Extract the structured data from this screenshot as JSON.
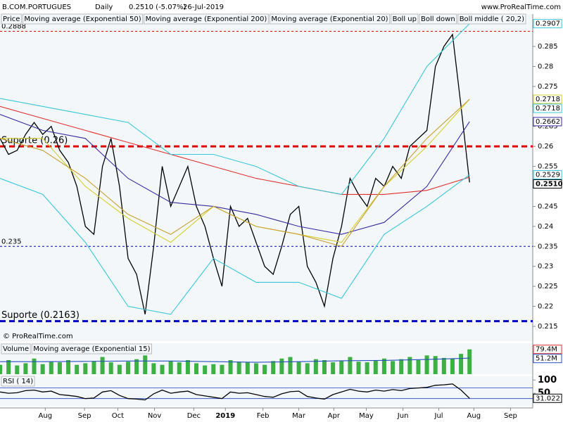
{
  "header": {
    "symbol": "B.COM.PORTUGUES",
    "period": "Daily",
    "price": "0.2510 (-5.07%)",
    "date": "26-Jul-2019",
    "site": "www.ProRealTime.com",
    "copyright": "© ProRealTime.com"
  },
  "chart_data": [
    {
      "type": "line",
      "xlim": [
        0,
        62.4
      ],
      "xticks": [
        {
          "value": 5.3,
          "label": "Aug"
        },
        {
          "value": 9.9,
          "label": "Sep"
        },
        {
          "value": 13.8,
          "label": "Oct"
        },
        {
          "value": 18.1,
          "label": "Nov"
        },
        {
          "value": 22.7,
          "label": "Dec"
        },
        {
          "value": 26.4,
          "label": "2019"
        },
        {
          "value": 30.8,
          "label": "Feb"
        },
        {
          "value": 35,
          "label": "Mar"
        },
        {
          "value": 39.1,
          "label": "Apr"
        },
        {
          "value": 42.9,
          "label": "May"
        },
        {
          "value": 47.2,
          "label": "Jun"
        },
        {
          "value": 51.4,
          "label": "Jul"
        },
        {
          "value": 55.5,
          "label": "Aug"
        },
        {
          "value": 59.8,
          "label": "Sep"
        }
      ],
      "ylim": [
        0.2113,
        0.2931
      ],
      "yticks": [
        0.215,
        0.22,
        0.225,
        0.23,
        0.235,
        0.24,
        0.245,
        0.25,
        0.255,
        0.26,
        0.265,
        0.27,
        0.275,
        0.28,
        0.285
      ],
      "series": [
        {
          "name": "Price",
          "color": "#000000",
          "values": [
            0.262,
            0.258,
            0.259,
            0.263,
            0.266,
            0.263,
            0.265,
            0.259,
            0.256,
            0.25,
            0.24,
            0.238,
            0.255,
            0.262,
            0.25,
            0.232,
            0.228,
            0.218,
            0.235,
            0.255,
            0.245,
            0.25,
            0.255,
            0.245,
            0.24,
            0.232,
            0.225,
            0.245,
            0.24,
            0.242,
            0.236,
            0.23,
            0.228,
            0.235,
            0.243,
            0.245,
            0.23,
            0.226,
            0.22,
            0.232,
            0.24,
            0.252,
            0.248,
            0.245,
            0.252,
            0.25,
            0.255,
            0.252,
            0.26,
            0.262,
            0.264,
            0.28,
            0.285,
            0.288,
            0.27,
            0.251
          ]
        },
        {
          "name": "Moving average (Exponential 50)",
          "color": "#3a2aa0",
          "x": [
            0,
            5,
            10,
            15,
            20,
            25,
            30,
            35,
            40,
            45,
            50,
            55
          ],
          "values": [
            0.268,
            0.264,
            0.262,
            0.252,
            0.246,
            0.245,
            0.243,
            0.24,
            0.238,
            0.241,
            0.25,
            0.2662
          ]
        },
        {
          "name": "Moving average (Exponential 200)",
          "color": "#e03030",
          "x": [
            0,
            5,
            10,
            15,
            20,
            25,
            30,
            35,
            40,
            45,
            50,
            55
          ],
          "values": [
            0.27,
            0.267,
            0.264,
            0.261,
            0.258,
            0.255,
            0.252,
            0.25,
            0.248,
            0.248,
            0.249,
            0.2523
          ]
        },
        {
          "name": "Moving average (Exponential 20)",
          "color": "#d4d030",
          "x": [
            0,
            5,
            10,
            15,
            20,
            25,
            30,
            35,
            40,
            45,
            50,
            55
          ],
          "values": [
            0.262,
            0.262,
            0.25,
            0.242,
            0.236,
            0.245,
            0.24,
            0.238,
            0.236,
            0.25,
            0.26,
            0.2718
          ]
        },
        {
          "name": "Boll up",
          "color": "#38c8d8",
          "x": [
            0,
            5,
            10,
            15,
            20,
            25,
            30,
            35,
            40,
            45,
            50,
            55
          ],
          "values": [
            0.272,
            0.27,
            0.268,
            0.266,
            0.258,
            0.258,
            0.255,
            0.25,
            0.248,
            0.262,
            0.28,
            0.2907
          ]
        },
        {
          "name": "Boll down",
          "color": "#38c8d8",
          "x": [
            0,
            5,
            10,
            15,
            20,
            25,
            30,
            35,
            40,
            45,
            50,
            55
          ],
          "values": [
            0.252,
            0.248,
            0.236,
            0.22,
            0.218,
            0.232,
            0.226,
            0.226,
            0.222,
            0.238,
            0.245,
            0.2529
          ]
        },
        {
          "name": "Boll middle ( 20,2)",
          "color": "#c8a030",
          "x": [
            0,
            5,
            10,
            15,
            20,
            25,
            30,
            35,
            40,
            45,
            50,
            55
          ],
          "values": [
            0.262,
            0.259,
            0.252,
            0.243,
            0.238,
            0.245,
            0.24,
            0.238,
            0.235,
            0.25,
            0.262,
            0.2718
          ]
        }
      ],
      "levels": [
        {
          "value": 0.2888,
          "label": "0.2888",
          "color": "#e00000",
          "style": "thin"
        },
        {
          "value": 0.26,
          "label": "Suporte (0.26)",
          "color": "#e00000",
          "style": "thick"
        },
        {
          "value": 0.235,
          "label": "0.235",
          "color": "#0000c0",
          "style": "thin"
        },
        {
          "value": 0.2163,
          "label": "Suporte (0.2163)",
          "color": "#0000c0",
          "style": "thick"
        }
      ],
      "last_labels": [
        {
          "value": 0.2907,
          "label": "0.2907",
          "color": "#38c8d8"
        },
        {
          "value": 0.2718,
          "label": "0.2718",
          "color": "#d4d030"
        },
        {
          "value": 0.2718,
          "label": "0.2718",
          "color": "#38c8d8"
        },
        {
          "value": 0.2662,
          "label": "0.2662",
          "color": "#3a2aa0"
        },
        {
          "value": 0.2529,
          "label": "0.2529",
          "color": "#38c8d8"
        },
        {
          "value": 0.251,
          "label": "0.2510",
          "color": "#000000"
        }
      ]
    },
    {
      "type": "bar",
      "ylim": [
        0,
        99
      ],
      "series": [
        {
          "name": "Volume",
          "color": "#3cb043",
          "values": [
            30,
            45,
            28,
            35,
            50,
            32,
            40,
            38,
            45,
            30,
            35,
            42,
            55,
            38,
            30,
            40,
            48,
            60,
            35,
            30,
            42,
            38,
            45,
            35,
            28,
            32,
            30,
            45,
            40,
            38,
            35,
            30,
            42,
            50,
            55,
            40,
            35,
            48,
            45,
            38,
            42,
            55,
            40,
            38,
            45,
            50,
            42,
            48,
            55,
            45,
            60,
            58,
            52,
            50,
            65,
            79.4
          ]
        },
        {
          "name": "Moving average (Exponential 15)",
          "color": "#2a50c0",
          "x": [
            0,
            5,
            10,
            15,
            20,
            25,
            30,
            35,
            40,
            45,
            50,
            55
          ],
          "values": [
            40,
            40,
            41,
            42,
            42,
            40,
            38,
            40,
            43,
            44,
            47,
            51.2
          ]
        }
      ],
      "last_labels": [
        {
          "value": 79.4,
          "label": "79.4M",
          "color": "#e03030"
        },
        {
          "value": 51.2,
          "label": "51.2M",
          "color": "#2a50c0"
        }
      ]
    },
    {
      "type": "line",
      "ylim": [
        0,
        114
      ],
      "yticks": [
        50,
        100
      ],
      "levels": [
        30,
        70
      ],
      "series": [
        {
          "name": "RSI ( 14)",
          "color": "#000000",
          "values": [
            55,
            50,
            52,
            60,
            62,
            55,
            58,
            45,
            42,
            38,
            30,
            32,
            55,
            60,
            42,
            30,
            28,
            25,
            48,
            62,
            50,
            55,
            58,
            45,
            40,
            35,
            30,
            55,
            50,
            52,
            45,
            38,
            35,
            48,
            56,
            58,
            38,
            32,
            28,
            45,
            55,
            65,
            58,
            55,
            62,
            58,
            64,
            60,
            68,
            70,
            72,
            80,
            82,
            85,
            62,
            31.022
          ]
        }
      ],
      "last_labels": [
        {
          "value": 31.022,
          "label": "31.022",
          "color": "#000000"
        }
      ]
    }
  ]
}
